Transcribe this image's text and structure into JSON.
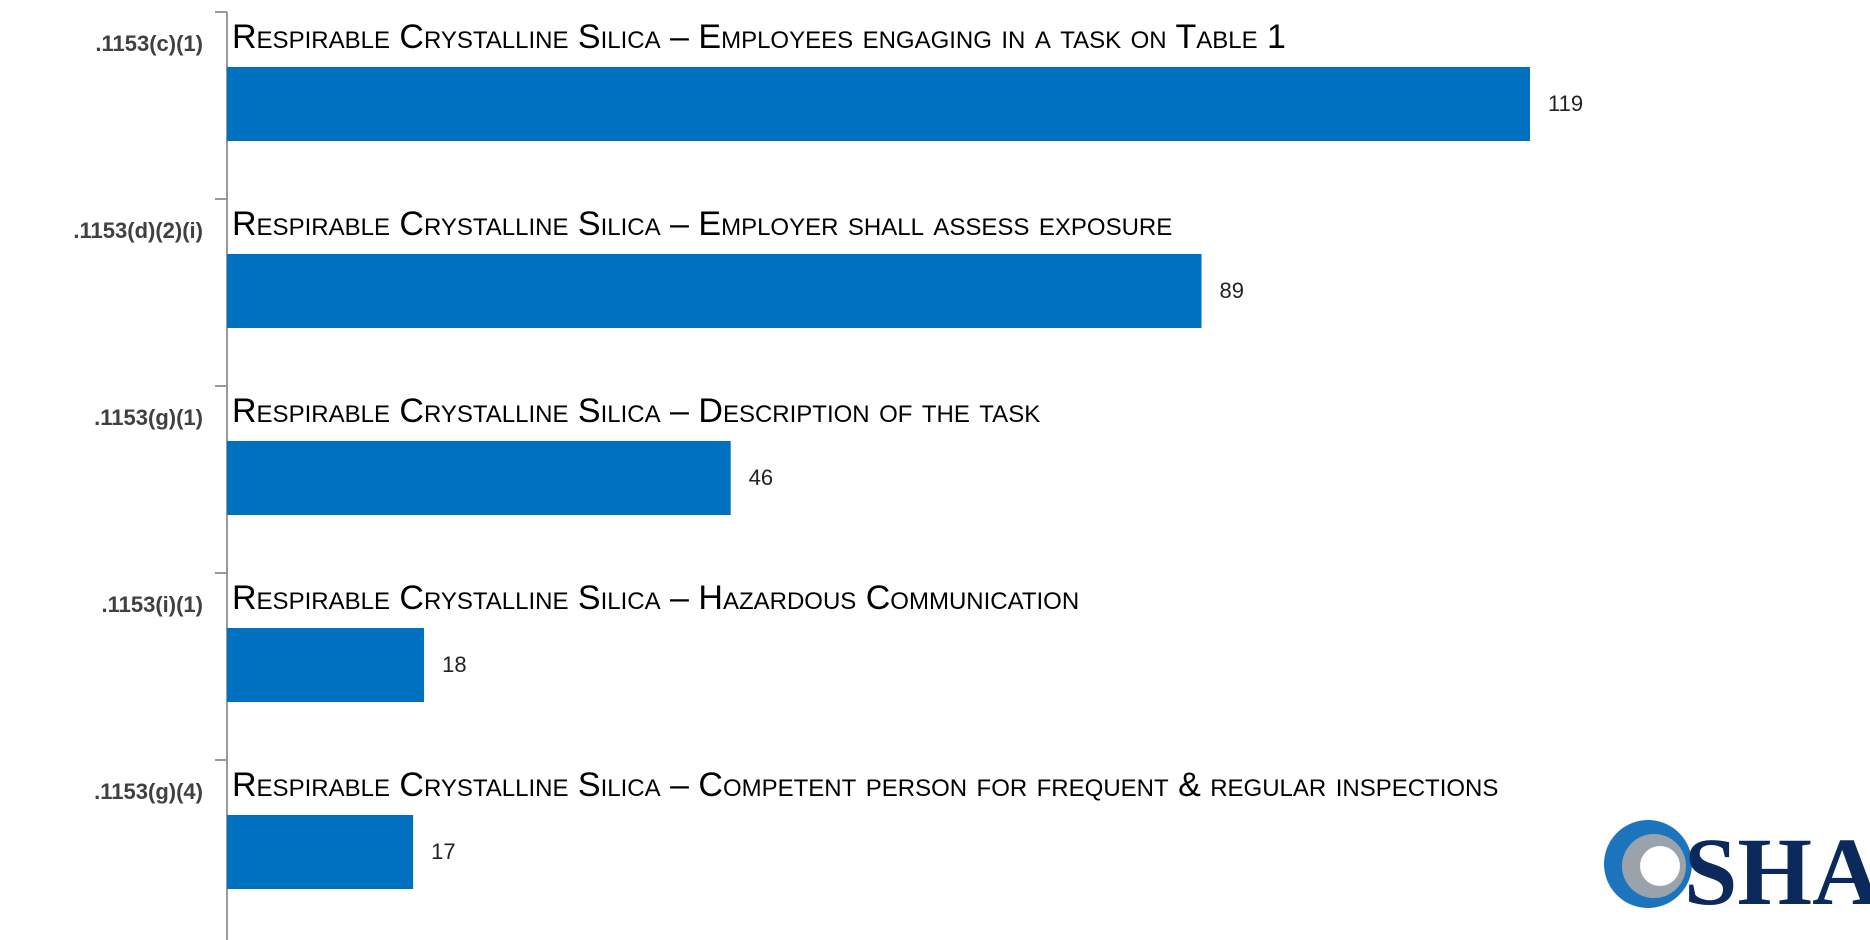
{
  "chart_data": {
    "type": "bar",
    "orientation": "horizontal",
    "categories": [
      ".1153(c)(1)",
      ".1153(d)(2)(i)",
      ".1153(g)(1)",
      ".1153(i)(1)",
      ".1153(g)(4)"
    ],
    "descriptions": [
      "Respirable Crystalline Silica – Employees engaging in a task on Table 1",
      "Respirable Crystalline Silica – Employer shall assess exposure",
      "Respirable Crystalline Silica – Description of the task",
      "Respirable Crystalline Silica – Hazardous Communication",
      "Respirable Crystalline Silica – Competent person for frequent & regular inspections"
    ],
    "values": [
      119,
      89,
      46,
      18,
      17
    ],
    "color": "#0070c0"
  },
  "logo": "SHA"
}
